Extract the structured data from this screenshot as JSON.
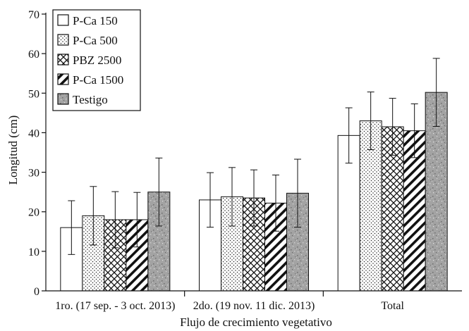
{
  "chart_data": {
    "type": "bar",
    "xlabel": "Flujo de crecimiento vegetativo",
    "ylabel": "Longitud (cm)",
    "ylim": [
      0,
      70
    ],
    "yticks": [
      0,
      10,
      20,
      30,
      40,
      50,
      60,
      70
    ],
    "categories": [
      "1ro. (17 sep. - 3 oct. 2013)",
      "2do. (19 nov. 11 dic. 2013)",
      "Total"
    ],
    "series": [
      {
        "name": "P-Ca 150",
        "pattern": "blank",
        "values": [
          16.0,
          23.0,
          39.3
        ],
        "errors": [
          6.8,
          6.9,
          7.0
        ]
      },
      {
        "name": "P-Ca 500",
        "pattern": "dots",
        "values": [
          19.0,
          23.8,
          43.0
        ],
        "errors": [
          7.4,
          7.4,
          7.3
        ]
      },
      {
        "name": "PBZ 2500",
        "pattern": "cross",
        "values": [
          18.0,
          23.5,
          41.5
        ],
        "errors": [
          7.1,
          7.1,
          7.2
        ]
      },
      {
        "name": "P-Ca 1500",
        "pattern": "diag",
        "values": [
          18.0,
          22.2,
          40.5
        ],
        "errors": [
          6.9,
          7.1,
          6.8
        ]
      },
      {
        "name": "Testigo",
        "pattern": "speckle",
        "values": [
          25.0,
          24.7,
          50.2
        ],
        "errors": [
          8.6,
          8.6,
          8.6
        ]
      }
    ],
    "grid": false,
    "legend_position": "top-left",
    "colors": {
      "axis": "#111111",
      "bar_edge": "#111111",
      "gray_fill": "#9a9a9a"
    }
  }
}
